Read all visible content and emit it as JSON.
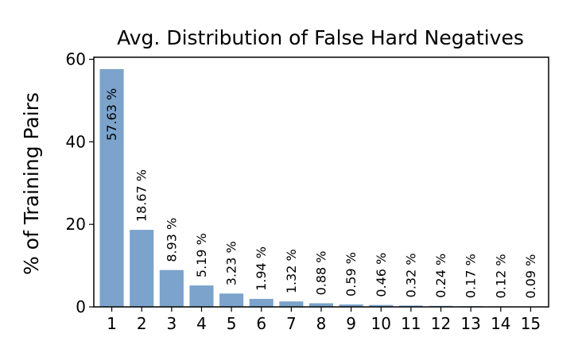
{
  "chart_data": {
    "type": "bar",
    "title": "Avg. Distribution of False Hard Negatives",
    "xlabel": "",
    "ylabel": "% of Training Pairs",
    "categories": [
      "1",
      "2",
      "3",
      "4",
      "5",
      "6",
      "7",
      "8",
      "9",
      "10",
      "11",
      "12",
      "13",
      "14",
      "15"
    ],
    "values": [
      57.63,
      18.67,
      8.93,
      5.19,
      3.23,
      1.94,
      1.32,
      0.88,
      0.59,
      0.46,
      0.32,
      0.24,
      0.17,
      0.12,
      0.09
    ],
    "data_labels": [
      "57.63 %",
      "18.67 %",
      "8.93 %",
      "5.19 %",
      "3.23 %",
      "1.94 %",
      "1.32 %",
      "0.88 %",
      "0.59 %",
      "0.46 %",
      "0.32 %",
      "0.24 %",
      "0.17 %",
      "0.12 %",
      "0.09 %"
    ],
    "yticks": [
      0,
      20,
      40,
      60
    ],
    "ylim": [
      0,
      60.5
    ],
    "bar_color": "#7ba3cb",
    "grid": false,
    "legend": false
  }
}
